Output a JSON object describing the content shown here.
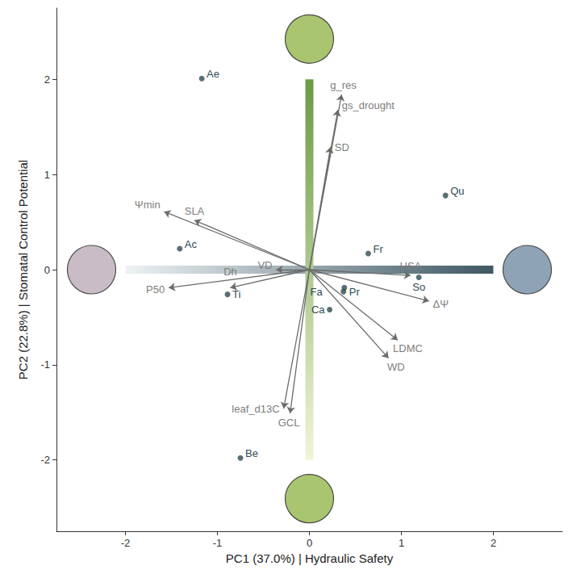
{
  "chart_data": {
    "type": "scatter",
    "x_label": "PC1 (37.0%) | Hydraulic Safety",
    "y_label": "PC2 (22.8%) | Stomatal Control Potential",
    "xlim": [
      -2.75,
      2.75
    ],
    "ylim": [
      -2.75,
      2.75
    ],
    "xticks": [
      -2,
      -1,
      0,
      1,
      2
    ],
    "yticks": [
      -2,
      -1,
      0,
      1,
      2
    ],
    "grid": false,
    "points": {
      "type": "scatter",
      "marker": "circle",
      "color": "#2e4b53",
      "labels": [
        "Ae",
        "Qu",
        "Fr",
        "Ac",
        "So",
        "Pr",
        "Fa",
        "Ca",
        "Ti",
        "Be"
      ],
      "x": [
        -1.17,
        1.48,
        0.64,
        -1.41,
        1.19,
        0.38,
        0.37,
        0.22,
        -0.89,
        -0.75
      ],
      "y": [
        2.01,
        0.78,
        0.17,
        0.22,
        -0.08,
        -0.19,
        -0.23,
        -0.42,
        -0.26,
        -1.98
      ]
    },
    "loadings": {
      "type": "arrow",
      "color": "#6b6b6b",
      "labels": [
        "g_res",
        "gs_drought",
        "SD",
        "Ψmin",
        "SLA",
        "VD",
        "P50",
        "Dh",
        "HSA",
        "ΔΨ",
        "LDMC",
        "WD",
        "leaf_d13C",
        "GCL"
      ],
      "x": [
        0.35,
        0.31,
        0.23,
        -1.58,
        -1.25,
        -0.36,
        -1.53,
        -0.86,
        1.1,
        1.3,
        0.96,
        0.86,
        -0.28,
        -0.21
      ],
      "y": [
        1.84,
        1.68,
        1.29,
        0.61,
        0.52,
        0.0,
        -0.19,
        -0.19,
        -0.06,
        -0.33,
        -0.74,
        -0.93,
        -1.46,
        -1.51
      ]
    }
  }
}
